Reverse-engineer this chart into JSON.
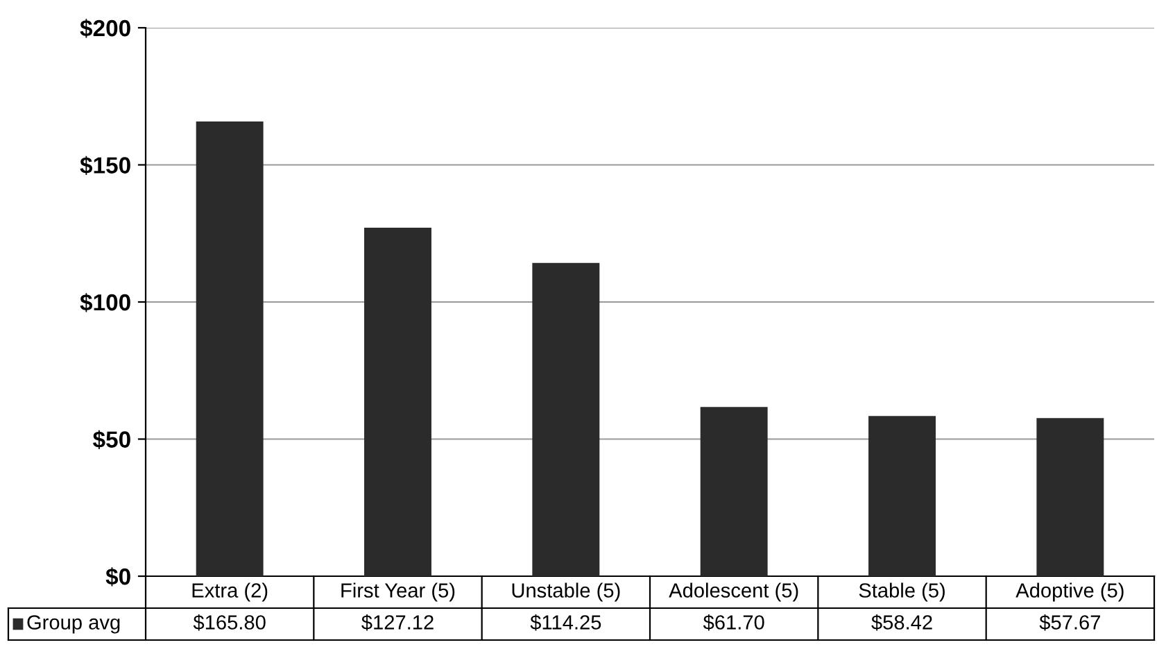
{
  "chart_data": {
    "type": "bar",
    "categories": [
      "Extra (2)",
      "First Year (5)",
      "Unstable (5)",
      "Adolescent (5)",
      "Stable (5)",
      "Adoptive (5)"
    ],
    "series": [
      {
        "name": "Group avg",
        "color": "#2b2b2b",
        "values": [
          165.8,
          127.12,
          114.25,
          61.7,
          58.42,
          57.67
        ],
        "value_labels": [
          "$165.80",
          "$127.12",
          "$114.25",
          "$61.70",
          "$58.42",
          "$57.67"
        ]
      }
    ],
    "ylim": [
      0,
      200
    ],
    "yticks": [
      {
        "value": 0,
        "label": "$0"
      },
      {
        "value": 50,
        "label": "$50"
      },
      {
        "value": 100,
        "label": "$100"
      },
      {
        "value": 150,
        "label": "$150"
      },
      {
        "value": 200,
        "label": "$200"
      }
    ],
    "grid": "y"
  }
}
